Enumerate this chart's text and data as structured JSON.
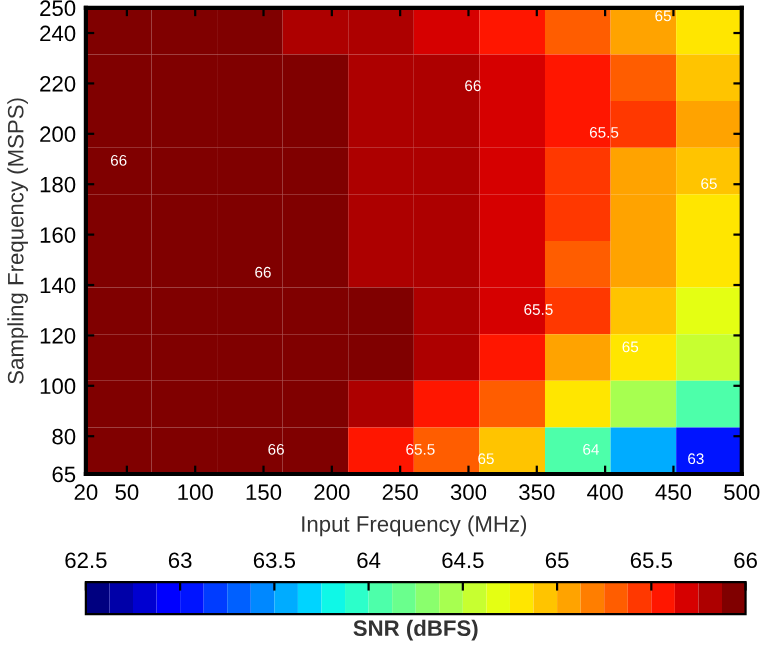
{
  "chart_data": {
    "type": "heatmap",
    "xlabel": "Input Frequency (MHz)",
    "ylabel": "Sampling Frequency (MSPS)",
    "clabel": "SNR (dBFS)",
    "x": [
      44,
      92,
      140,
      188,
      236,
      284,
      332,
      380,
      428,
      476
    ],
    "y": [
      240.75,
      222.25,
      203.75,
      185.25,
      166.75,
      148.25,
      129.75,
      111.25,
      92.75,
      74.25
    ],
    "cells": [
      [
        65.9,
        65.9,
        65.9,
        65.8,
        65.8,
        65.7,
        65.6,
        65.3,
        65.0,
        64.8
      ],
      [
        66.0,
        65.9,
        65.9,
        65.9,
        65.8,
        65.8,
        65.7,
        65.6,
        65.3,
        64.9
      ],
      [
        66.0,
        65.9,
        65.9,
        65.9,
        65.8,
        65.8,
        65.7,
        65.6,
        65.4,
        65.0
      ],
      [
        66.0,
        66.0,
        65.9,
        65.9,
        65.8,
        65.8,
        65.7,
        65.4,
        65.1,
        64.9
      ],
      [
        66.0,
        66.0,
        66.0,
        65.9,
        65.8,
        65.8,
        65.7,
        65.4,
        65.0,
        64.8
      ],
      [
        66.0,
        66.0,
        66.0,
        65.9,
        65.8,
        65.8,
        65.7,
        65.3,
        65.0,
        64.8
      ],
      [
        66.0,
        66.0,
        66.0,
        66.0,
        65.9,
        65.8,
        65.7,
        65.4,
        64.9,
        64.7
      ],
      [
        66.0,
        66.0,
        66.0,
        66.0,
        65.9,
        65.8,
        65.6,
        65.0,
        64.8,
        64.5
      ],
      [
        66.0,
        66.0,
        66.0,
        66.0,
        65.8,
        65.6,
        65.3,
        64.8,
        64.4,
        64.0
      ],
      [
        66.0,
        66.0,
        66.0,
        65.9,
        65.6,
        65.3,
        64.9,
        64.1,
        63.5,
        63.0
      ]
    ],
    "xlim": [
      20,
      500
    ],
    "ylim": [
      65,
      250
    ],
    "xticks": [
      20,
      50,
      100,
      150,
      200,
      250,
      300,
      350,
      400,
      450,
      500
    ],
    "yticks": [
      65,
      80,
      100,
      120,
      140,
      160,
      180,
      200,
      220,
      240,
      250
    ],
    "clim": [
      62.5,
      66
    ],
    "cticks": [
      62.5,
      63,
      63.5,
      64,
      64.5,
      65,
      65.5,
      66
    ],
    "annotations": [
      "66",
      "66",
      "66",
      "66",
      "65.5",
      "65.5",
      "65.5",
      "65",
      "65",
      "65",
      "65",
      "64",
      "63"
    ]
  }
}
